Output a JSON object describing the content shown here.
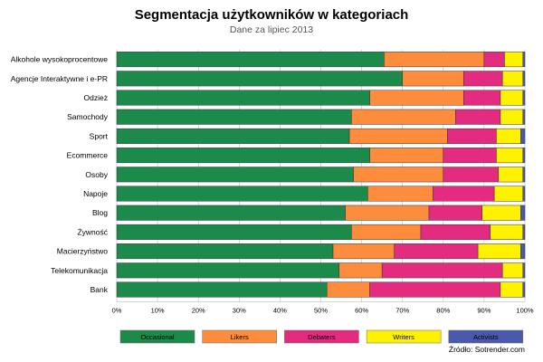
{
  "chart_data": {
    "type": "bar",
    "orientation": "horizontal",
    "stacked": true,
    "title": "Segmentacja użytkowników w kategoriach",
    "subtitle": "Dane za lipiec 2013",
    "source": "Źródło: Sotrender.com",
    "xlim": [
      0,
      100
    ],
    "xticks": [
      "0%",
      "10%",
      "20%",
      "30%",
      "40%",
      "50%",
      "60%",
      "70%",
      "80%",
      "90%",
      "100%"
    ],
    "legend_position": "bottom",
    "categories": [
      "Alkohole wysokoprocentowe",
      "Agencje Interaktywne i e-PR",
      "Odzież",
      "Samochody",
      "Sport",
      "Ecommerce",
      "Osoby",
      "Napoje",
      "Blog",
      "Żywność",
      "Macierzyństwo",
      "Telekomunikacja",
      "Bank"
    ],
    "series": [
      {
        "name": "Occasional",
        "color": "#1b8a4a",
        "values": [
          65.5,
          70,
          62,
          57.5,
          57,
          62,
          58,
          61.5,
          56,
          57.5,
          53,
          54.5,
          51.5
        ]
      },
      {
        "name": "Likers",
        "color": "#fd8c3c",
        "values": [
          24.5,
          15,
          23,
          25.5,
          24,
          18,
          22,
          16,
          20.5,
          17,
          15,
          10.5,
          10.5
        ]
      },
      {
        "name": "Debaters",
        "color": "#e32b7f",
        "values": [
          5,
          9.5,
          9,
          11,
          12,
          13,
          13.5,
          15,
          13,
          17,
          20.5,
          29.5,
          32
        ]
      },
      {
        "name": "Writers",
        "color": "#fff200",
        "values": [
          4.5,
          5,
          5.5,
          5.5,
          6,
          6.5,
          6,
          7,
          9.5,
          8,
          10.5,
          5,
          5.5
        ]
      },
      {
        "name": "Activists",
        "color": "#4a58ad",
        "values": [
          0.5,
          0.5,
          0.5,
          0.5,
          1,
          0.5,
          0.5,
          0.5,
          1,
          0.5,
          1,
          0.5,
          0.5
        ]
      }
    ]
  }
}
